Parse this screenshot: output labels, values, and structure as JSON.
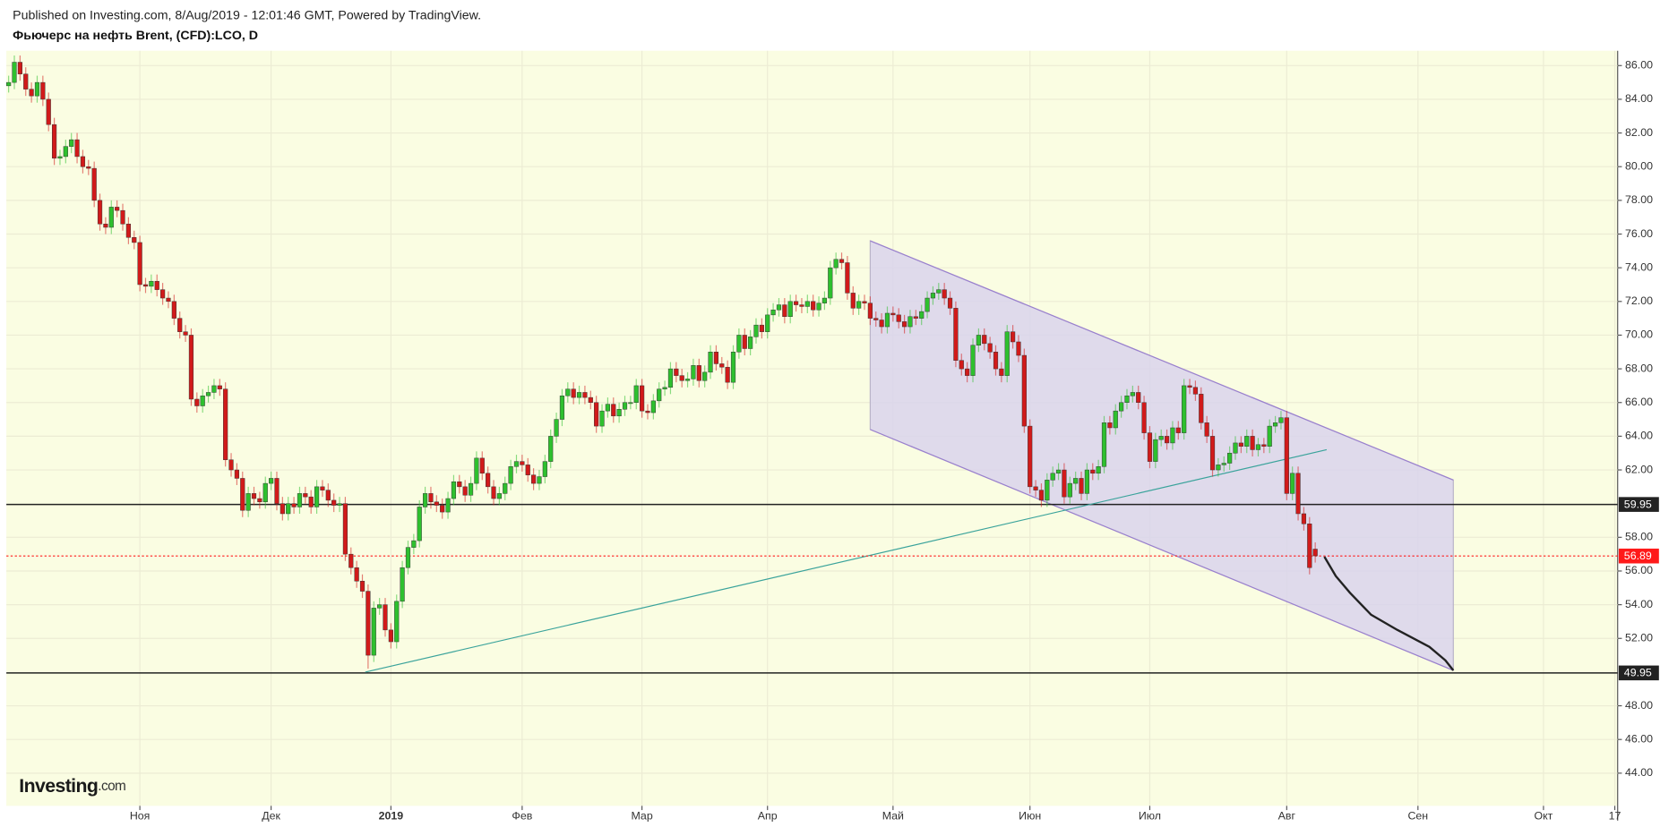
{
  "chart_data": {
    "type": "candlestick",
    "subtitle": "Published on Investing.com, 8/Aug/2019 - 12:01:46 GMT, Powered by TradingView.",
    "title": "Фьючерс на нефть Brent, (CFD):LCO, D",
    "watermark": {
      "name": "Investing",
      "suffix": ".com"
    },
    "up_color": "#2ec02e",
    "down_color": "#d11a1a",
    "background": "#fafde2",
    "grid": true,
    "xlim": [
      -0.4,
      282
    ],
    "ylim": [
      42.06,
      86.88
    ],
    "xticks": [
      {
        "value": 23,
        "label": "Ноя"
      },
      {
        "value": 46,
        "label": "Дек"
      },
      {
        "value": 67,
        "label": "2019"
      },
      {
        "value": 90,
        "label": "Фев"
      },
      {
        "value": 111,
        "label": "Мар"
      },
      {
        "value": 133,
        "label": "Апр"
      },
      {
        "value": 155,
        "label": "Май"
      },
      {
        "value": 179,
        "label": "Июн"
      },
      {
        "value": 200,
        "label": "Июл"
      },
      {
        "value": 224,
        "label": "Авг"
      },
      {
        "value": 247,
        "label": "Сен"
      },
      {
        "value": 269,
        "label": "Окт"
      },
      {
        "value": 281.5,
        "label": "17"
      }
    ],
    "yticks": [
      {
        "value": 44,
        "label": "44.00"
      },
      {
        "value": 46,
        "label": "46.00"
      },
      {
        "value": 48,
        "label": "48.00"
      },
      {
        "value": 52,
        "label": "52.00"
      },
      {
        "value": 54,
        "label": "54.00"
      },
      {
        "value": 56,
        "label": "56.00"
      },
      {
        "value": 58,
        "label": "58.00"
      },
      {
        "value": 62,
        "label": "62.00"
      },
      {
        "value": 64,
        "label": "64.00"
      },
      {
        "value": 66,
        "label": "66.00"
      },
      {
        "value": 68,
        "label": "68.00"
      },
      {
        "value": 70,
        "label": "70.00"
      },
      {
        "value": 72,
        "label": "72.00"
      },
      {
        "value": 74,
        "label": "74.00"
      },
      {
        "value": 76,
        "label": "76.00"
      },
      {
        "value": 78,
        "label": "78.00"
      },
      {
        "value": 80,
        "label": "80.00"
      },
      {
        "value": 82,
        "label": "82.00"
      },
      {
        "value": 84,
        "label": "84.00"
      },
      {
        "value": 86,
        "label": "86.00"
      }
    ],
    "hlines": [
      59.95,
      49.95
    ],
    "hline_color": "#222222",
    "last_price": 56.89,
    "last_price_color": "#ff1a1a",
    "channel": {
      "x": [
        151,
        253.2
      ],
      "top": [
        75.6,
        61.4
      ],
      "bottom": [
        64.4,
        50.1
      ],
      "fill": "#d9d3ec",
      "edge": "#9a80cf"
    },
    "trendline": {
      "x": [
        62.5,
        231
      ],
      "y": [
        50.0,
        63.2
      ],
      "color": "#3aa39b"
    },
    "projection": {
      "x": [
        230.6,
        232.6,
        235.1,
        238.8,
        243.4,
        249,
        251.8,
        253.2
      ],
      "y": [
        56.85,
        55.7,
        54.7,
        53.4,
        52.5,
        51.5,
        50.7,
        50.1
      ],
      "color": "#222222"
    },
    "open": [
      84.8,
      85.0,
      86.2,
      85.5,
      84.6,
      84.2,
      85.0,
      84.0,
      82.5,
      80.5,
      80.6,
      81.2,
      81.6,
      80.6,
      80.0,
      79.9,
      78.0,
      76.6,
      76.4,
      77.6,
      77.4,
      76.6,
      75.8,
      75.5,
      73.0,
      72.9,
      73.2,
      72.7,
      72.2,
      72.0,
      71.0,
      70.2,
      70.0,
      66.2,
      65.8,
      66.4,
      66.6,
      67.0,
      66.8,
      62.6,
      62.0,
      61.5,
      59.6,
      60.6,
      60.3,
      60.1,
      61.2,
      61.5,
      60.0,
      59.4,
      60.0,
      59.8,
      60.6,
      60.4,
      59.8,
      61.0,
      60.8,
      60.2,
      59.9,
      60.0,
      57.0,
      56.2,
      55.4,
      54.8,
      51.0,
      53.8,
      54.0,
      52.5,
      51.8,
      54.2,
      56.2,
      57.4,
      57.8,
      59.8,
      60.6,
      60.1,
      59.9,
      59.5,
      60.3,
      61.3,
      61.0,
      60.5,
      61.2,
      62.7,
      61.8,
      61.0,
      60.3,
      60.6,
      61.2,
      62.2,
      62.5,
      62.3,
      61.7,
      61.2,
      61.6,
      62.5,
      64.0,
      65.0,
      66.4,
      66.8,
      66.3,
      66.6,
      66.3,
      66.0,
      64.6,
      65.5,
      65.9,
      65.2,
      65.6,
      66.0,
      66.0,
      67.0,
      65.5,
      65.4,
      66.1,
      66.8,
      66.9,
      68.0,
      67.6,
      67.3,
      67.4,
      68.2,
      67.3,
      67.8,
      69.0,
      68.3,
      68.1,
      67.2,
      69.0,
      70.0,
      69.2,
      69.9,
      70.6,
      70.2,
      71.2,
      71.5,
      71.8,
      71.1,
      72.0,
      71.8,
      71.7,
      72.0,
      71.5,
      71.9,
      72.2,
      74.0,
      74.5,
      74.3,
      72.5,
      71.6,
      72.0,
      71.9,
      71.0,
      70.9,
      70.5,
      71.3,
      71.2,
      70.8,
      70.5,
      71.1,
      71.0,
      71.4,
      72.2,
      72.5,
      72.7,
      72.2,
      71.6,
      68.5,
      68.0,
      67.6,
      69.4,
      70.0,
      69.5,
      69.0,
      68.0,
      67.6,
      70.2,
      69.6,
      68.8,
      64.6,
      61.0,
      60.8,
      60.2,
      61.4,
      61.8,
      62.0,
      60.4,
      61.2,
      61.5,
      60.6,
      62.0,
      61.8,
      62.2,
      64.8,
      64.5,
      65.5,
      66.0,
      66.4,
      66.6,
      66.0,
      64.2,
      62.5,
      63.8,
      64.0,
      63.6,
      64.5,
      64.2,
      67.0,
      66.9,
      66.5,
      64.8,
      64.0,
      62.0,
      62.3,
      62.4,
      63.0,
      63.6,
      63.4,
      64.0,
      63.2,
      63.5,
      63.4,
      64.6,
      64.8,
      65.1,
      60.6,
      61.8,
      59.4,
      58.8,
      57.3
    ],
    "high": [
      85.4,
      86.6,
      86.6,
      85.9,
      85.0,
      85.4,
      85.4,
      84.4,
      82.9,
      81.0,
      81.6,
      82.0,
      82.0,
      81.0,
      80.4,
      80.3,
      78.4,
      77.0,
      78.0,
      78.0,
      77.8,
      77.0,
      76.2,
      75.9,
      73.4,
      73.6,
      73.6,
      73.1,
      72.6,
      72.4,
      71.4,
      70.6,
      70.4,
      66.6,
      66.8,
      67.0,
      67.4,
      67.4,
      67.2,
      63.0,
      62.4,
      61.9,
      61.0,
      61.0,
      60.7,
      61.6,
      61.9,
      61.9,
      60.4,
      60.4,
      60.4,
      61.0,
      61.0,
      60.8,
      61.4,
      61.4,
      61.2,
      60.6,
      60.4,
      60.4,
      57.4,
      56.6,
      55.8,
      55.2,
      54.2,
      54.4,
      54.4,
      52.9,
      54.6,
      56.6,
      57.8,
      58.2,
      60.2,
      61.0,
      61.0,
      60.5,
      60.3,
      60.7,
      61.7,
      61.7,
      61.4,
      61.6,
      63.1,
      63.1,
      62.2,
      61.4,
      61.0,
      61.6,
      62.6,
      62.9,
      62.9,
      62.7,
      62.1,
      62.0,
      62.9,
      64.4,
      65.4,
      66.8,
      67.2,
      67.2,
      67.0,
      67.0,
      66.7,
      66.4,
      65.9,
      66.3,
      66.3,
      66.0,
      66.4,
      66.4,
      67.4,
      67.4,
      65.9,
      66.5,
      67.2,
      67.3,
      68.4,
      68.4,
      68.0,
      67.8,
      68.6,
      68.6,
      68.2,
      69.4,
      69.4,
      68.7,
      68.5,
      69.4,
      70.4,
      70.4,
      70.3,
      71.0,
      71.0,
      71.6,
      71.9,
      72.2,
      72.2,
      72.4,
      72.4,
      72.2,
      72.4,
      72.4,
      72.3,
      72.6,
      74.4,
      74.9,
      74.9,
      74.7,
      72.9,
      72.4,
      72.4,
      72.3,
      71.4,
      71.3,
      71.7,
      71.7,
      71.6,
      71.2,
      71.5,
      71.5,
      71.8,
      72.6,
      72.9,
      73.1,
      73.1,
      72.6,
      72.0,
      68.9,
      68.4,
      69.8,
      70.4,
      70.4,
      69.9,
      69.4,
      68.4,
      70.6,
      70.6,
      70.0,
      69.2,
      65.0,
      61.4,
      61.2,
      61.8,
      62.2,
      62.4,
      62.4,
      61.6,
      61.9,
      61.9,
      62.4,
      62.4,
      62.6,
      65.2,
      65.2,
      65.9,
      66.4,
      66.8,
      67.0,
      67.0,
      66.4,
      64.6,
      64.2,
      64.4,
      64.4,
      64.9,
      64.9,
      67.4,
      67.4,
      67.3,
      66.9,
      65.2,
      64.4,
      62.7,
      62.8,
      63.4,
      64.0,
      64.0,
      64.4,
      64.4,
      63.9,
      63.9,
      65.0,
      65.2,
      65.5,
      65.5,
      62.2,
      62.2,
      59.8,
      59.2,
      57.7
    ],
    "low": [
      84.4,
      84.6,
      85.1,
      84.2,
      83.8,
      83.8,
      83.6,
      82.1,
      80.1,
      80.1,
      80.2,
      80.8,
      80.2,
      79.6,
      79.5,
      77.6,
      76.2,
      76.0,
      76.0,
      77.0,
      76.2,
      75.4,
      75.1,
      72.6,
      72.5,
      72.5,
      72.3,
      71.8,
      71.6,
      70.6,
      69.8,
      69.6,
      65.8,
      65.4,
      65.4,
      66.0,
      66.2,
      66.4,
      62.2,
      61.6,
      61.1,
      59.2,
      59.2,
      59.9,
      59.7,
      59.7,
      60.8,
      59.6,
      59.0,
      59.0,
      59.4,
      59.4,
      60.0,
      59.4,
      59.4,
      60.4,
      59.8,
      59.5,
      59.5,
      56.6,
      55.8,
      55.0,
      54.4,
      50.2,
      50.6,
      53.4,
      52.1,
      51.4,
      51.4,
      53.8,
      55.8,
      57.0,
      57.4,
      59.4,
      59.7,
      59.5,
      59.1,
      59.1,
      59.9,
      60.6,
      60.1,
      60.1,
      60.8,
      61.4,
      60.6,
      59.9,
      59.9,
      60.2,
      60.8,
      61.8,
      61.9,
      61.3,
      60.8,
      60.8,
      61.2,
      62.1,
      63.6,
      64.6,
      66.0,
      65.9,
      65.9,
      65.9,
      65.6,
      64.2,
      64.2,
      65.1,
      64.8,
      64.8,
      65.2,
      65.6,
      65.6,
      65.1,
      65.0,
      65.0,
      65.7,
      66.4,
      66.5,
      67.2,
      66.9,
      66.9,
      67.0,
      66.9,
      66.9,
      67.4,
      67.9,
      67.7,
      66.8,
      66.8,
      68.6,
      68.8,
      68.8,
      69.5,
      69.8,
      69.8,
      70.8,
      71.1,
      70.7,
      70.7,
      71.4,
      71.3,
      71.3,
      71.1,
      71.1,
      71.5,
      71.8,
      73.6,
      73.9,
      72.1,
      71.2,
      71.2,
      71.5,
      70.6,
      70.5,
      70.1,
      70.1,
      70.8,
      70.4,
      70.1,
      70.1,
      70.6,
      70.6,
      71.0,
      71.8,
      72.1,
      71.8,
      71.2,
      68.1,
      67.6,
      67.2,
      67.2,
      69.0,
      69.1,
      68.6,
      67.6,
      67.2,
      67.2,
      69.2,
      68.4,
      64.2,
      60.6,
      60.4,
      59.8,
      59.8,
      61.0,
      61.4,
      60.0,
      60.0,
      60.8,
      60.2,
      60.2,
      61.4,
      61.4,
      61.8,
      64.1,
      64.1,
      65.1,
      65.6,
      66.0,
      65.6,
      63.8,
      62.1,
      62.1,
      63.4,
      63.2,
      63.2,
      63.8,
      63.8,
      66.5,
      66.1,
      64.4,
      63.6,
      61.6,
      61.6,
      61.9,
      62.0,
      62.6,
      63.0,
      63.0,
      62.8,
      62.8,
      63.0,
      63.0,
      64.2,
      64.4,
      60.2,
      60.2,
      59.0,
      58.4,
      55.8,
      56.5
    ],
    "close": [
      85.0,
      86.2,
      85.5,
      84.6,
      84.2,
      85.0,
      84.0,
      82.5,
      80.5,
      80.6,
      81.2,
      81.6,
      80.6,
      80.0,
      79.9,
      78.0,
      76.6,
      76.4,
      77.6,
      77.4,
      76.6,
      75.8,
      75.5,
      73.0,
      72.9,
      73.2,
      72.7,
      72.2,
      72.0,
      71.0,
      70.2,
      70.0,
      66.2,
      65.8,
      66.4,
      66.6,
      67.0,
      66.8,
      62.6,
      62.0,
      61.5,
      59.6,
      60.6,
      60.3,
      60.1,
      61.2,
      61.5,
      60.0,
      59.4,
      60.0,
      59.8,
      60.6,
      60.4,
      59.8,
      61.0,
      60.8,
      60.2,
      59.9,
      60.0,
      57.0,
      56.2,
      55.4,
      54.8,
      51.0,
      53.8,
      54.0,
      52.5,
      51.8,
      54.2,
      56.2,
      57.4,
      57.8,
      59.8,
      60.6,
      60.1,
      59.9,
      59.5,
      60.3,
      61.3,
      61.0,
      60.5,
      61.2,
      62.7,
      61.8,
      61.0,
      60.3,
      60.6,
      61.2,
      62.2,
      62.5,
      62.3,
      61.7,
      61.2,
      61.6,
      62.5,
      64.0,
      65.0,
      66.4,
      66.8,
      66.3,
      66.6,
      66.3,
      66.0,
      64.6,
      65.5,
      65.9,
      65.2,
      65.6,
      66.0,
      66.0,
      67.0,
      65.5,
      65.4,
      66.1,
      66.8,
      66.9,
      68.0,
      67.6,
      67.3,
      67.4,
      68.2,
      67.3,
      67.8,
      69.0,
      68.3,
      68.1,
      67.2,
      69.0,
      70.0,
      69.2,
      69.9,
      70.6,
      70.2,
      71.2,
      71.5,
      71.8,
      71.1,
      72.0,
      71.8,
      71.7,
      72.0,
      71.5,
      71.9,
      72.2,
      74.0,
      74.5,
      74.3,
      72.5,
      71.6,
      72.0,
      71.9,
      71.0,
      70.9,
      70.5,
      71.3,
      71.2,
      70.8,
      70.5,
      71.1,
      71.0,
      71.4,
      72.2,
      72.5,
      72.7,
      72.2,
      71.6,
      68.5,
      68.0,
      67.6,
      69.4,
      70.0,
      69.5,
      69.0,
      68.0,
      67.6,
      70.2,
      69.6,
      68.8,
      64.6,
      61.0,
      60.8,
      60.2,
      61.4,
      61.8,
      62.0,
      60.4,
      61.2,
      61.5,
      60.6,
      62.0,
      61.8,
      62.2,
      64.8,
      64.5,
      65.5,
      66.0,
      66.4,
      66.6,
      66.0,
      64.2,
      62.5,
      63.8,
      64.0,
      63.6,
      64.5,
      64.2,
      67.0,
      66.9,
      66.5,
      64.8,
      64.0,
      62.0,
      62.3,
      62.4,
      63.0,
      63.6,
      63.4,
      64.0,
      63.2,
      63.5,
      63.4,
      64.6,
      64.8,
      65.1,
      60.6,
      61.8,
      59.4,
      58.8,
      56.2,
      56.9
    ]
  }
}
